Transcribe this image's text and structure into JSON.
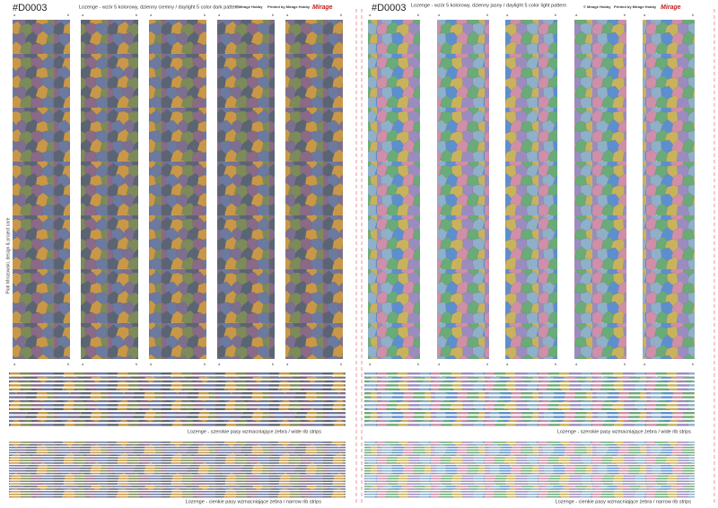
{
  "left": {
    "code": "#D0003",
    "title": "Lozenge - wzór 5 kolorowy, dzienny ciemny / daylight 5 color dark pattern",
    "copyright": "© Mirage Hobby",
    "printed_by": "Printed by Mirage Hobby",
    "logo": "Mirage",
    "wide_caption": "Lozenge - szerokie pasy wzmacniające żebra / wide rib strips",
    "narrow_caption": "Lozenge - cienkie pasy wzmacniające żebra / narrow rib strips"
  },
  "right": {
    "code": "#D0003",
    "title": "Lozenge - wzór 5 kolorowy, dzienny jasny / daylight 5 color light pattern",
    "copyright": "© Mirage Hobby",
    "printed_by": "Printed by Mirage Hobby",
    "logo": "Mirage",
    "wide_caption": "Lozenge - szerokie pasy wzmacniające żebra / wide rib strips",
    "narrow_caption": "Lozenge - cienkie pasy wzmacniające żebra / narrow rib strips"
  },
  "strip_labels": [
    "a",
    "b"
  ],
  "credit": "Piotr Mrozowski, design & project care"
}
